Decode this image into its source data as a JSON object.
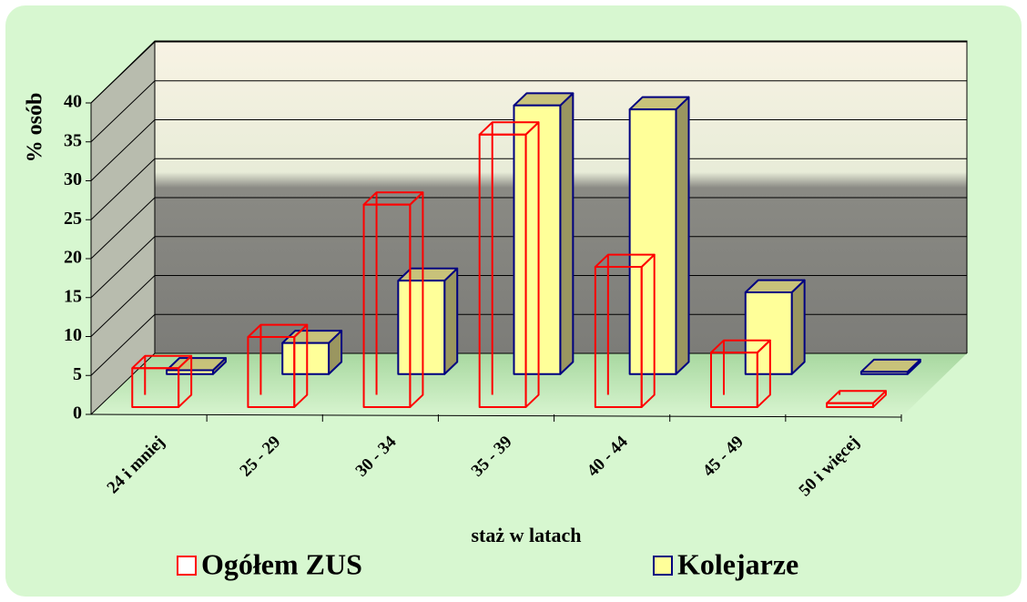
{
  "chart_data": {
    "type": "bar3d",
    "y_label": "% osób",
    "x_label": "staż w latach",
    "categories": [
      "24 i mniej",
      "25 - 29",
      "30 - 34",
      "35 - 39",
      "40 - 44",
      "45 - 49",
      "50 i więcej"
    ],
    "series": [
      {
        "name": "Ogółem ZUS",
        "color": "#ff0000",
        "values": [
          5,
          9,
          26,
          35,
          18,
          7,
          0.5
        ]
      },
      {
        "name": "Kolejarze",
        "color": "#000080",
        "values": [
          0.5,
          4,
          12,
          34.5,
          34,
          10.5,
          0.3
        ]
      }
    ],
    "ylim": [
      0,
      40
    ],
    "yticks": [
      0,
      5,
      10,
      15,
      20,
      25,
      30,
      35,
      40
    ],
    "grid": true
  }
}
